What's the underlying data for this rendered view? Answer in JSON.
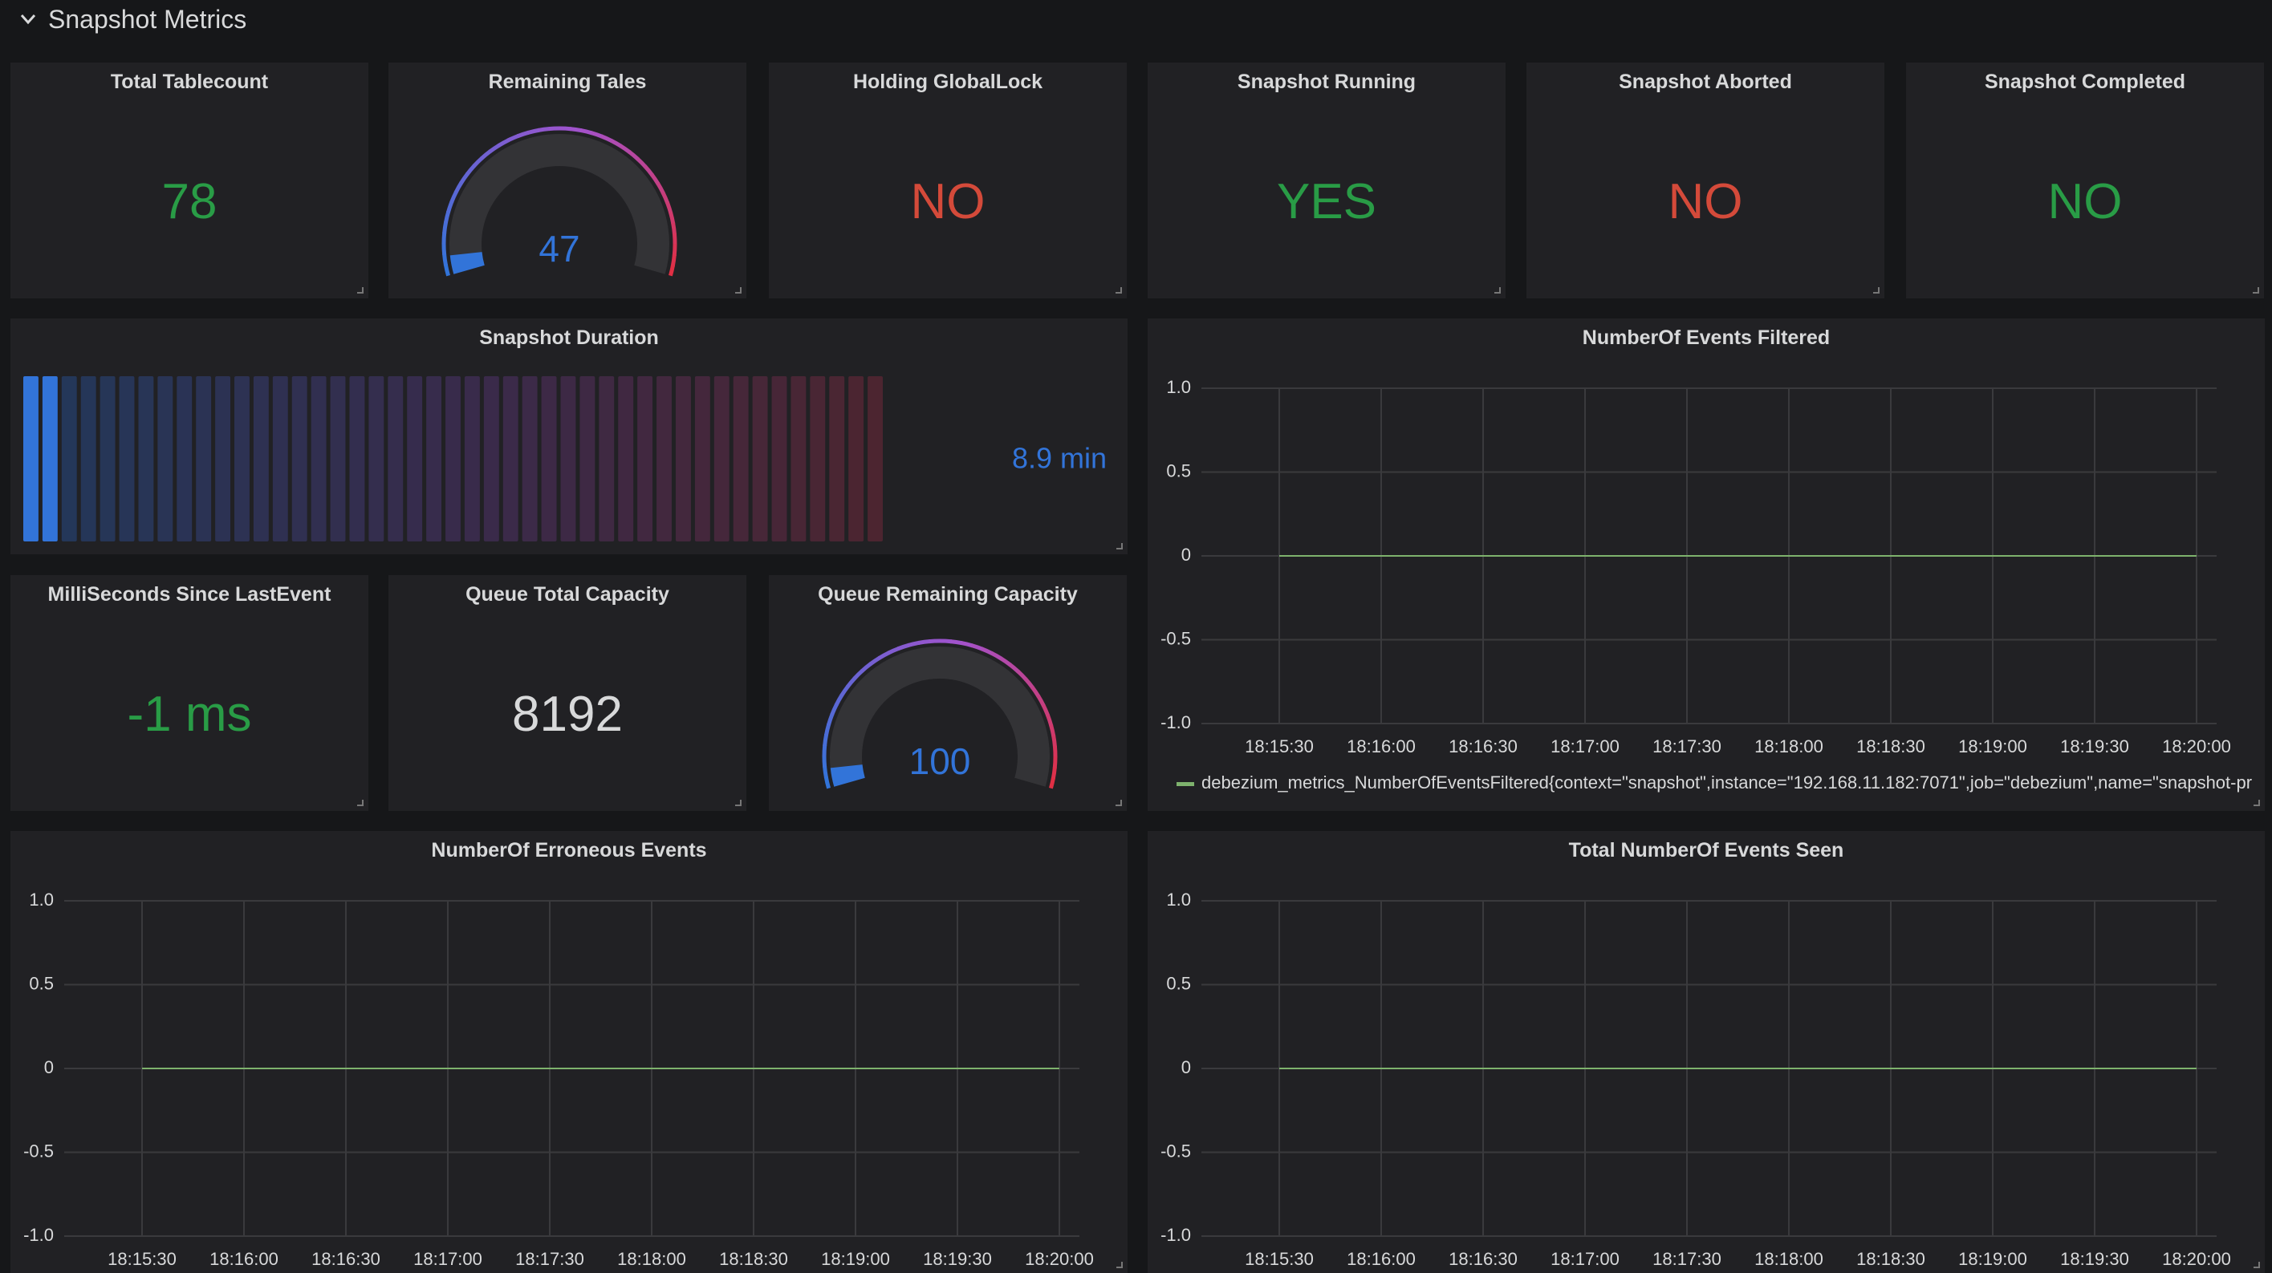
{
  "row_title": "Snapshot Metrics",
  "panels": [
    {
      "type": "stat",
      "title": "Total Tablecount",
      "value": 78,
      "color": "#299c46"
    },
    {
      "type": "gauge",
      "title": "Remaining Tales",
      "value": 47,
      "color": "#3274d9"
    },
    {
      "type": "stat",
      "title": "Holding GlobalLock",
      "value": "NO",
      "color": "#d44a3a"
    },
    {
      "type": "stat",
      "title": "Snapshot Running",
      "value": "YES",
      "color": "#299c46"
    },
    {
      "type": "stat",
      "title": "Snapshot Aborted",
      "value": "NO",
      "color": "#d44a3a"
    },
    {
      "type": "stat",
      "title": "Snapshot Completed",
      "value": "NO",
      "color": "#299c46"
    },
    {
      "type": "bargauge",
      "title": "Snapshot Duration",
      "value": "8.9 min",
      "color": "#3274d9"
    },
    {
      "type": "line",
      "title": "NumberOf Events Filtered",
      "ylim": [
        -1,
        1
      ],
      "yticks": [
        {
          "value": -1,
          "label": "-1.0"
        },
        {
          "value": -0.5,
          "label": "-0.5"
        },
        0,
        {
          "value": 0.5,
          "label": "0.5"
        },
        {
          "value": 1,
          "label": "1.0"
        }
      ],
      "x": [
        "18:15:30",
        "18:16:00",
        "18:16:30",
        "18:17:00",
        "18:17:30",
        "18:18:00",
        "18:18:30",
        "18:19:00",
        "18:19:30",
        "18:20:00"
      ],
      "series": [
        {
          "name": "debezium_metrics_NumberOfEventsFiltered{context=\"snapshot\",instance=\"192.168.11.182:7071\",job=\"debezium\",name=\"snapshot-pr",
          "color": "#7eb26d",
          "values": [
            0,
            0,
            0,
            0,
            0,
            0,
            0,
            0,
            0,
            0
          ]
        }
      ]
    },
    {
      "type": "stat",
      "title": "MilliSeconds Since LastEvent",
      "value": "-1 ms",
      "color": "#299c46"
    },
    {
      "type": "stat",
      "title": "Queue Total Capacity",
      "value": 8192,
      "color": "#d8d9da"
    },
    {
      "type": "gauge",
      "title": "Queue Remaining Capacity",
      "value": 100,
      "color": "#3274d9"
    },
    {
      "type": "line",
      "title": "NumberOf Erroneous Events",
      "ylim": [
        -1,
        1
      ],
      "yticks": [
        {
          "value": -1,
          "label": "-1.0"
        },
        {
          "value": -0.5,
          "label": "-0.5"
        },
        0,
        {
          "value": 0.5,
          "label": "0.5"
        },
        {
          "value": 1,
          "label": "1.0"
        }
      ],
      "x": [
        "18:15:30",
        "18:16:00",
        "18:16:30",
        "18:17:00",
        "18:17:30",
        "18:18:00",
        "18:18:30",
        "18:19:00",
        "18:19:30",
        "18:20:00"
      ],
      "series": [
        {
          "color": "#7eb26d",
          "values": [
            0,
            0,
            0,
            0,
            0,
            0,
            0,
            0,
            0,
            0
          ]
        }
      ]
    },
    {
      "type": "line",
      "title": "Total NumberOf Events Seen",
      "ylim": [
        -1,
        1
      ],
      "yticks": [
        {
          "value": -1,
          "label": "-1.0"
        },
        {
          "value": -0.5,
          "label": "-0.5"
        },
        0,
        {
          "value": 0.5,
          "label": "0.5"
        },
        {
          "value": 1,
          "label": "1.0"
        }
      ],
      "x": [
        "18:15:30",
        "18:16:00",
        "18:16:30",
        "18:17:00",
        "18:17:30",
        "18:18:00",
        "18:18:30",
        "18:19:00",
        "18:19:30",
        "18:20:00"
      ],
      "series": [
        {
          "color": "#7eb26d",
          "values": [
            0,
            0,
            0,
            0,
            0,
            0,
            0,
            0,
            0,
            0
          ]
        }
      ]
    }
  ]
}
